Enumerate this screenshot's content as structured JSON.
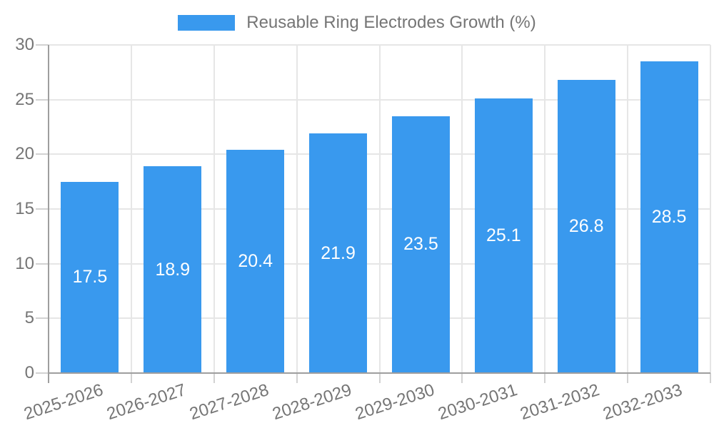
{
  "legend": {
    "label": "Reusable Ring Electrodes Growth (%)"
  },
  "colors": {
    "bar": "#3999ee",
    "text": "#757575",
    "bar_label_text": "#ffffff",
    "gridline": "#e6e6e6",
    "axis": "#9e9e9e",
    "tick": "#d2d2d2",
    "background": "#ffffff"
  },
  "chart_data": {
    "type": "bar",
    "title": "Reusable Ring Electrodes Growth (%)",
    "categories": [
      "2025-2026",
      "2026-2027",
      "2027-2028",
      "2028-2029",
      "2029-2030",
      "2030-2031",
      "2031-2032",
      "2032-2033"
    ],
    "values": [
      17.5,
      18.9,
      20.4,
      21.9,
      23.5,
      25.1,
      26.8,
      28.5
    ],
    "value_label_decimals": 1,
    "value_label_position": "inside-center",
    "xlabel": "",
    "ylabel": "",
    "ylim": [
      0,
      30
    ],
    "ytick_step": 5,
    "yticks": [
      0,
      5,
      10,
      15,
      20,
      25,
      30
    ],
    "grid": true,
    "x_tick_rotation_deg": -18,
    "legend_position": "top-center",
    "bar_relative_width": 0.7
  }
}
